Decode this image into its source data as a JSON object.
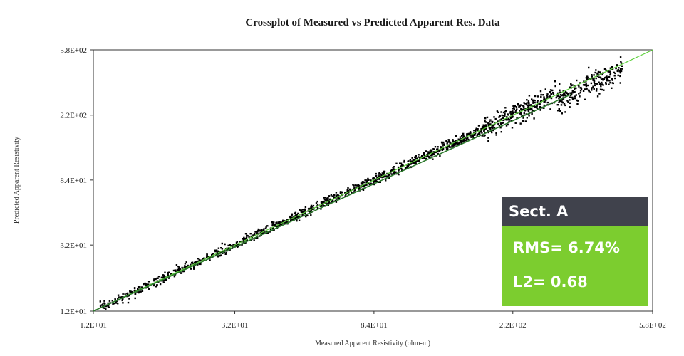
{
  "chart_data": {
    "type": "scatter",
    "title": "Crossplot of Measured vs Predicted Apparent Res. Data",
    "xlabel": "Measured Apparent Resistivity (ohm-m)",
    "ylabel": "Predicted Apparent Resistivity",
    "x_scale": "log",
    "y_scale": "log",
    "xlim": [
      12,
      580
    ],
    "ylim": [
      12,
      580
    ],
    "x_ticks": [
      "1.2E+01",
      "3.2E+01",
      "8.4E+01",
      "2.2E+02",
      "5.8E+02"
    ],
    "y_ticks": [
      "1.2E+01",
      "3.2E+01",
      "8.4E+01",
      "2.2E+02",
      "5.8E+02"
    ],
    "x_tick_values": [
      12,
      32,
      84,
      220,
      580
    ],
    "y_tick_values": [
      12,
      32,
      84,
      220,
      580
    ],
    "reference_line": {
      "label": "",
      "color": "#5ccf3a",
      "from": [
        12,
        12
      ],
      "to": [
        580,
        580
      ]
    },
    "trend_line": {
      "color": "#2d7a2d",
      "from": [
        12,
        12
      ],
      "to": [
        330,
        300
      ]
    },
    "series_color": "#000000",
    "series_note": "approx 1500 points scattered tightly around the 1:1 line",
    "sample_points": [
      [
        13.0,
        13.4
      ],
      [
        15.2,
        15.0
      ],
      [
        18.5,
        19.3
      ],
      [
        22.0,
        21.1
      ],
      [
        26.4,
        27.5
      ],
      [
        32.0,
        31.2
      ],
      [
        38.6,
        40.1
      ],
      [
        46.0,
        44.5
      ],
      [
        55.2,
        57.3
      ],
      [
        66.0,
        63.8
      ],
      [
        78.5,
        81.2
      ],
      [
        84.0,
        86.0
      ],
      [
        95.0,
        91.7
      ],
      [
        112.0,
        116.5
      ],
      [
        135.0,
        131.0
      ],
      [
        160.0,
        166.0
      ],
      [
        190.0,
        183.5
      ],
      [
        220.0,
        226.0
      ],
      [
        260.0,
        252.0
      ],
      [
        300.0,
        292.0
      ],
      [
        330.0,
        305.0
      ],
      [
        380.0,
        330.0
      ],
      [
        420.0,
        350.0
      ],
      [
        450.0,
        440.0
      ]
    ]
  },
  "legend_box": {
    "section": "Sect. A",
    "rms": "RMS= 6.74%",
    "l2": "L2= 0.68",
    "header_color": "#40424c",
    "body_color": "#7ccd2f"
  }
}
